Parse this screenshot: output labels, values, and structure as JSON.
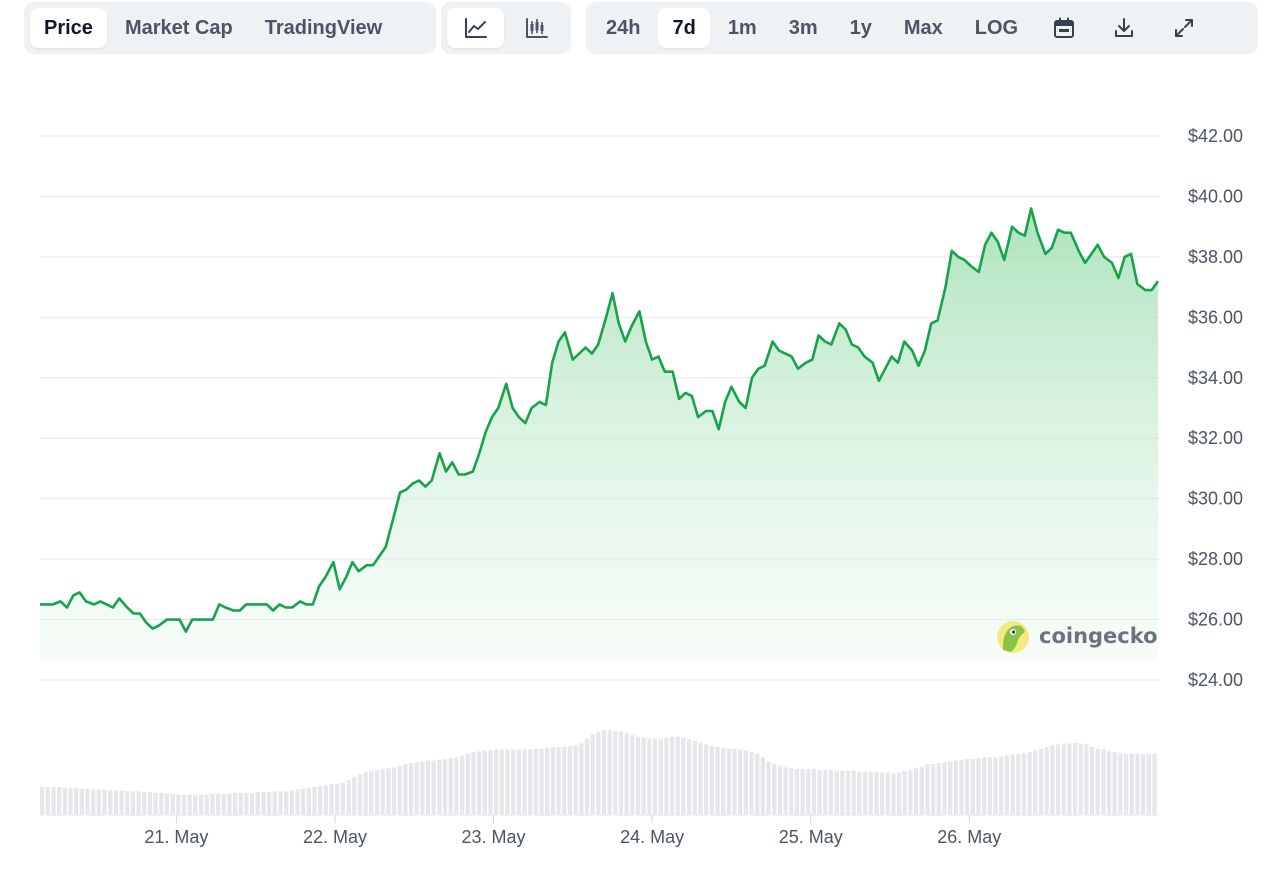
{
  "toolbar": {
    "view_tabs": [
      {
        "label": "Price",
        "active": true
      },
      {
        "label": "Market Cap",
        "active": false
      },
      {
        "label": "TradingView",
        "active": false
      }
    ],
    "chart_types": [
      {
        "icon": "line-chart-icon",
        "active": true
      },
      {
        "icon": "candlestick-chart-icon",
        "active": false
      }
    ],
    "ranges": [
      {
        "label": "24h",
        "active": false
      },
      {
        "label": "7d",
        "active": true
      },
      {
        "label": "1m",
        "active": false
      },
      {
        "label": "3m",
        "active": false
      },
      {
        "label": "1y",
        "active": false
      },
      {
        "label": "Max",
        "active": false
      },
      {
        "label": "LOG",
        "active": false
      }
    ],
    "tool_icons": [
      "calendar-icon",
      "download-icon",
      "fullscreen-icon"
    ]
  },
  "watermark": {
    "text": "coingecko",
    "icon": "coingecko-logo-icon"
  },
  "chart_data": {
    "type": "area",
    "line_color": "#16a34a",
    "fill_color": "#b7e7c3",
    "volume_color": "#e5e7eb",
    "ylim": [
      24,
      42
    ],
    "y_ticks": [
      {
        "value": 42,
        "label": "$42.00"
      },
      {
        "value": 40,
        "label": "$40.00"
      },
      {
        "value": 38,
        "label": "$38.00"
      },
      {
        "value": 36,
        "label": "$36.00"
      },
      {
        "value": 34,
        "label": "$34.00"
      },
      {
        "value": 32,
        "label": "$32.00"
      },
      {
        "value": 30,
        "label": "$30.00"
      },
      {
        "value": 28,
        "label": "$28.00"
      },
      {
        "value": 26,
        "label": "$26.00"
      },
      {
        "value": 24,
        "label": "$24.00"
      }
    ],
    "xlim": [
      20.14,
      27.04
    ],
    "x_ticks": [
      {
        "value": 21,
        "label": "21. May"
      },
      {
        "value": 22,
        "label": "22. May"
      },
      {
        "value": 23,
        "label": "23. May"
      },
      {
        "value": 24,
        "label": "24. May"
      },
      {
        "value": 25,
        "label": "25. May"
      },
      {
        "value": 26,
        "label": "26. May"
      }
    ],
    "price": [
      [
        20.14,
        26.5
      ],
      [
        20.18,
        26.5
      ],
      [
        20.22,
        26.5
      ],
      [
        20.27,
        26.6
      ],
      [
        20.31,
        26.4
      ],
      [
        20.35,
        26.8
      ],
      [
        20.39,
        26.9
      ],
      [
        20.43,
        26.6
      ],
      [
        20.48,
        26.5
      ],
      [
        20.52,
        26.6
      ],
      [
        20.56,
        26.5
      ],
      [
        20.6,
        26.4
      ],
      [
        20.64,
        26.7
      ],
      [
        20.69,
        26.4
      ],
      [
        20.73,
        26.2
      ],
      [
        20.77,
        26.2
      ],
      [
        20.81,
        25.9
      ],
      [
        20.85,
        25.7
      ],
      [
        20.89,
        25.8
      ],
      [
        20.94,
        26.0
      ],
      [
        20.98,
        26.0
      ],
      [
        21.02,
        26.0
      ],
      [
        21.06,
        25.6
      ],
      [
        21.1,
        26.0
      ],
      [
        21.15,
        26.0
      ],
      [
        21.19,
        26.0
      ],
      [
        21.23,
        26.0
      ],
      [
        21.27,
        26.5
      ],
      [
        21.31,
        26.4
      ],
      [
        21.36,
        26.3
      ],
      [
        21.4,
        26.3
      ],
      [
        21.44,
        26.5
      ],
      [
        21.48,
        26.5
      ],
      [
        21.52,
        26.5
      ],
      [
        21.57,
        26.5
      ],
      [
        21.61,
        26.3
      ],
      [
        21.65,
        26.5
      ],
      [
        21.69,
        26.4
      ],
      [
        21.73,
        26.4
      ],
      [
        21.78,
        26.6
      ],
      [
        21.82,
        26.5
      ],
      [
        21.86,
        26.5
      ],
      [
        21.9,
        27.1
      ],
      [
        21.94,
        27.4
      ],
      [
        21.99,
        27.9
      ],
      [
        22.03,
        27.0
      ],
      [
        22.07,
        27.4
      ],
      [
        22.11,
        27.9
      ],
      [
        22.15,
        27.6
      ],
      [
        22.2,
        27.8
      ],
      [
        22.24,
        27.8
      ],
      [
        22.28,
        28.1
      ],
      [
        22.32,
        28.4
      ],
      [
        22.36,
        29.2
      ],
      [
        22.41,
        30.2
      ],
      [
        22.45,
        30.3
      ],
      [
        22.49,
        30.5
      ],
      [
        22.53,
        30.6
      ],
      [
        22.57,
        30.4
      ],
      [
        22.61,
        30.6
      ],
      [
        22.66,
        31.5
      ],
      [
        22.7,
        30.9
      ],
      [
        22.74,
        31.2
      ],
      [
        22.78,
        30.8
      ],
      [
        22.82,
        30.8
      ],
      [
        22.87,
        30.9
      ],
      [
        22.91,
        31.5
      ],
      [
        22.95,
        32.2
      ],
      [
        22.99,
        32.7
      ],
      [
        23.03,
        33.0
      ],
      [
        23.08,
        33.8
      ],
      [
        23.12,
        33.0
      ],
      [
        23.16,
        32.7
      ],
      [
        23.2,
        32.5
      ],
      [
        23.24,
        33.0
      ],
      [
        23.29,
        33.2
      ],
      [
        23.33,
        33.1
      ],
      [
        23.37,
        34.5
      ],
      [
        23.41,
        35.2
      ],
      [
        23.45,
        35.5
      ],
      [
        23.5,
        34.6
      ],
      [
        23.54,
        34.8
      ],
      [
        23.58,
        35.0
      ],
      [
        23.62,
        34.8
      ],
      [
        23.66,
        35.1
      ],
      [
        23.71,
        36.0
      ],
      [
        23.75,
        36.8
      ],
      [
        23.79,
        35.8
      ],
      [
        23.83,
        35.2
      ],
      [
        23.87,
        35.7
      ],
      [
        23.92,
        36.2
      ],
      [
        23.96,
        35.2
      ],
      [
        24.0,
        34.6
      ],
      [
        24.04,
        34.7
      ],
      [
        24.08,
        34.2
      ],
      [
        24.13,
        34.2
      ],
      [
        24.17,
        33.3
      ],
      [
        24.21,
        33.5
      ],
      [
        24.25,
        33.4
      ],
      [
        24.29,
        32.7
      ],
      [
        24.34,
        32.9
      ],
      [
        24.38,
        32.9
      ],
      [
        24.42,
        32.3
      ],
      [
        24.46,
        33.2
      ],
      [
        24.5,
        33.7
      ],
      [
        24.55,
        33.2
      ],
      [
        24.59,
        33.0
      ],
      [
        24.63,
        34.0
      ],
      [
        24.67,
        34.3
      ],
      [
        24.71,
        34.4
      ],
      [
        24.76,
        35.2
      ],
      [
        24.8,
        34.9
      ],
      [
        24.84,
        34.8
      ],
      [
        24.88,
        34.7
      ],
      [
        24.92,
        34.3
      ],
      [
        24.97,
        34.5
      ],
      [
        25.01,
        34.6
      ],
      [
        25.05,
        35.4
      ],
      [
        25.09,
        35.2
      ],
      [
        25.13,
        35.1
      ],
      [
        25.18,
        35.8
      ],
      [
        25.22,
        35.6
      ],
      [
        25.26,
        35.1
      ],
      [
        25.3,
        35.0
      ],
      [
        25.34,
        34.7
      ],
      [
        25.39,
        34.5
      ],
      [
        25.43,
        33.9
      ],
      [
        25.47,
        34.3
      ],
      [
        25.51,
        34.7
      ],
      [
        25.55,
        34.5
      ],
      [
        25.59,
        35.2
      ],
      [
        25.64,
        34.9
      ],
      [
        25.68,
        34.4
      ],
      [
        25.72,
        34.9
      ],
      [
        25.76,
        35.8
      ],
      [
        25.8,
        35.9
      ],
      [
        25.85,
        37.0
      ],
      [
        25.89,
        38.2
      ],
      [
        25.93,
        38.0
      ],
      [
        25.97,
        37.9
      ],
      [
        26.01,
        37.7
      ],
      [
        26.06,
        37.5
      ],
      [
        26.1,
        38.4
      ],
      [
        26.14,
        38.8
      ],
      [
        26.18,
        38.5
      ],
      [
        26.22,
        37.9
      ],
      [
        26.27,
        39.0
      ],
      [
        26.31,
        38.8
      ],
      [
        26.35,
        38.7
      ],
      [
        26.39,
        39.6
      ],
      [
        26.43,
        38.8
      ],
      [
        26.48,
        38.1
      ],
      [
        26.52,
        38.3
      ],
      [
        26.56,
        38.9
      ],
      [
        26.6,
        38.8
      ],
      [
        26.64,
        38.8
      ],
      [
        26.69,
        38.2
      ],
      [
        26.73,
        37.8
      ],
      [
        26.77,
        38.1
      ],
      [
        26.81,
        38.4
      ],
      [
        26.85,
        38.0
      ],
      [
        26.9,
        37.8
      ],
      [
        26.94,
        37.3
      ],
      [
        26.98,
        38.0
      ],
      [
        27.02,
        38.1
      ],
      [
        27.06,
        37.1
      ],
      [
        27.11,
        36.9
      ],
      [
        27.15,
        36.9
      ],
      [
        27.19,
        37.2
      ]
    ],
    "volume_scale_note": "relative",
    "volume": [
      0.33,
      0.33,
      0.33,
      0.33,
      0.32,
      0.32,
      0.32,
      0.31,
      0.31,
      0.3,
      0.3,
      0.3,
      0.29,
      0.29,
      0.29,
      0.28,
      0.28,
      0.28,
      0.27,
      0.27,
      0.26,
      0.26,
      0.25,
      0.25,
      0.24,
      0.24,
      0.24,
      0.24,
      0.24,
      0.24,
      0.25,
      0.25,
      0.25,
      0.25,
      0.26,
      0.26,
      0.26,
      0.26,
      0.27,
      0.27,
      0.27,
      0.28,
      0.28,
      0.28,
      0.29,
      0.3,
      0.31,
      0.32,
      0.33,
      0.34,
      0.35,
      0.36,
      0.37,
      0.38,
      0.41,
      0.45,
      0.48,
      0.5,
      0.52,
      0.53,
      0.54,
      0.55,
      0.56,
      0.58,
      0.6,
      0.61,
      0.62,
      0.63,
      0.64,
      0.64,
      0.65,
      0.66,
      0.67,
      0.68,
      0.7,
      0.72,
      0.74,
      0.75,
      0.76,
      0.76,
      0.77,
      0.77,
      0.77,
      0.77,
      0.77,
      0.77,
      0.77,
      0.78,
      0.78,
      0.79,
      0.8,
      0.8,
      0.8,
      0.81,
      0.82,
      0.85,
      0.9,
      0.95,
      0.98,
      1.0,
      1.0,
      0.99,
      0.98,
      0.96,
      0.94,
      0.92,
      0.91,
      0.9,
      0.9,
      0.9,
      0.91,
      0.92,
      0.92,
      0.91,
      0.89,
      0.87,
      0.85,
      0.83,
      0.81,
      0.8,
      0.79,
      0.78,
      0.78,
      0.77,
      0.76,
      0.74,
      0.72,
      0.68,
      0.63,
      0.6,
      0.58,
      0.56,
      0.55,
      0.54,
      0.54,
      0.54,
      0.54,
      0.53,
      0.53,
      0.53,
      0.52,
      0.52,
      0.52,
      0.52,
      0.51,
      0.51,
      0.51,
      0.51,
      0.5,
      0.5,
      0.49,
      0.5,
      0.52,
      0.53,
      0.55,
      0.57,
      0.6,
      0.6,
      0.61,
      0.62,
      0.63,
      0.64,
      0.65,
      0.66,
      0.66,
      0.67,
      0.68,
      0.68,
      0.68,
      0.69,
      0.7,
      0.71,
      0.72,
      0.73,
      0.74,
      0.76,
      0.78,
      0.8,
      0.82,
      0.83,
      0.84,
      0.84,
      0.85,
      0.84,
      0.83,
      0.8,
      0.78,
      0.77,
      0.75,
      0.74,
      0.73,
      0.72,
      0.72,
      0.72,
      0.71,
      0.72,
      0.72
    ]
  }
}
